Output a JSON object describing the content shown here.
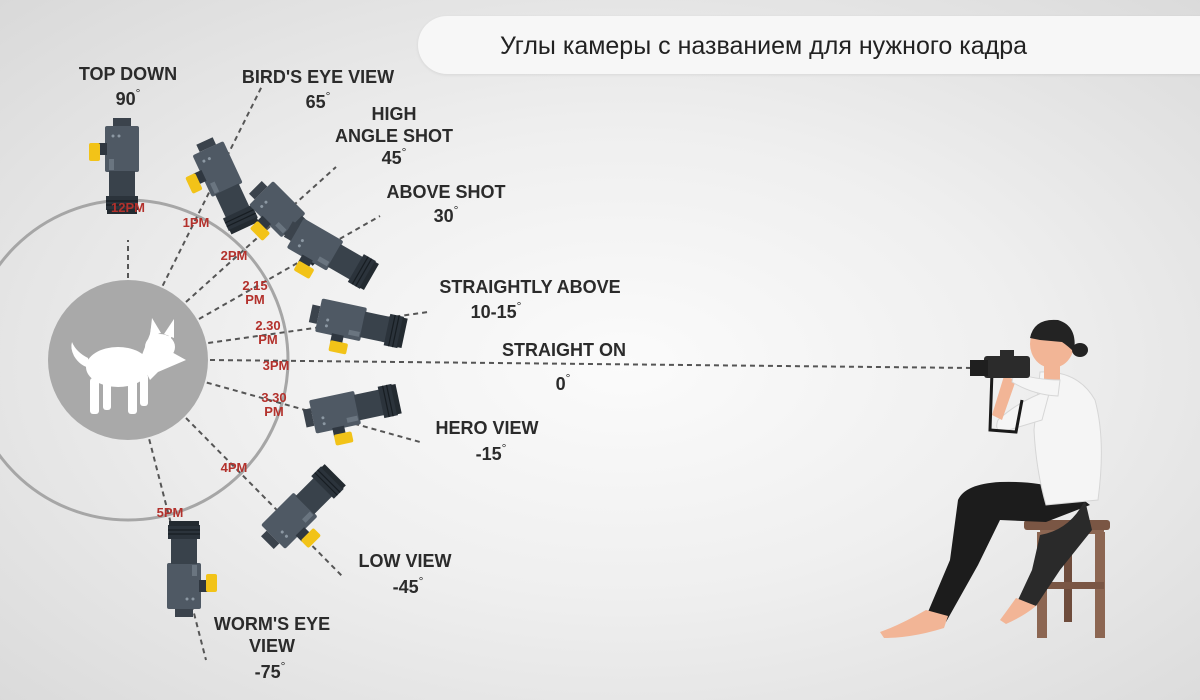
{
  "title": "Углы камеры с названием для нужного кадра",
  "colors": {
    "time_red": "#b3312c",
    "label": "#2b2b2b",
    "circle": "#a6a6a6",
    "subject_disc": "#a9a9a9",
    "camera_body": "#4f5964",
    "camera_lens": "#2f3740",
    "camera_accent": "#f2c318",
    "stool": "#8c6652",
    "shirt": "#f5f5f5",
    "trousers": "#1c1c1c",
    "skin": "#f2b596"
  },
  "subject_icon": "dog-icon",
  "photographer_icon": "photographer-icon",
  "angles": [
    {
      "name_lines": [
        "TOP DOWN"
      ],
      "degree": "90",
      "time": [
        "12PM"
      ]
    },
    {
      "name_lines": [
        "BIRD'S EYE VIEW"
      ],
      "degree": "65",
      "time": [
        "1PM"
      ]
    },
    {
      "name_lines": [
        "HIGH",
        "ANGLE SHOT"
      ],
      "degree": "45",
      "time": [
        "2PM"
      ]
    },
    {
      "name_lines": [
        "ABOVE SHOT"
      ],
      "degree": "30",
      "time": [
        "2.15",
        "PM"
      ]
    },
    {
      "name_lines": [
        "STRAIGHTLY ABOVE"
      ],
      "degree": "10-15",
      "time": [
        "2.30",
        "PM"
      ]
    },
    {
      "name_lines": [
        "STRAIGHT ON"
      ],
      "degree": "0",
      "time": [
        "3PM"
      ]
    },
    {
      "name_lines": [
        "HERO VIEW"
      ],
      "degree": "-15",
      "time": [
        "3.30",
        "PM"
      ]
    },
    {
      "name_lines": [
        "LOW VIEW"
      ],
      "degree": "-45",
      "time": [
        "4PM"
      ]
    },
    {
      "name_lines": [
        "WORM'S EYE",
        "VIEW"
      ],
      "degree": "-75",
      "time": [
        "5PM"
      ]
    }
  ]
}
